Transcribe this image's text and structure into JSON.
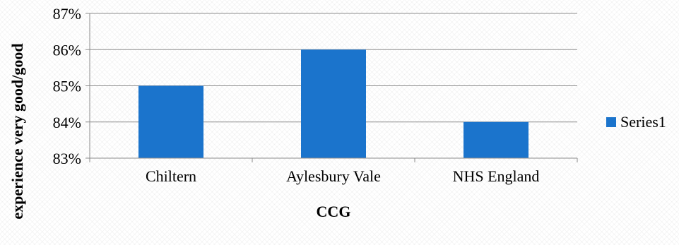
{
  "chart_data": {
    "type": "bar",
    "categories": [
      "Chiltern",
      "Aylesbury Vale",
      "NHS England"
    ],
    "series": [
      {
        "name": "Series1",
        "values": [
          0.85,
          0.86,
          0.84
        ]
      }
    ],
    "xlabel": "CCG",
    "ylabel": "experience very good/good",
    "ylim": [
      0.83,
      0.87
    ],
    "yticks": [
      0.83,
      0.84,
      0.85,
      0.86,
      0.87
    ],
    "ytick_labels": [
      "83%",
      "84%",
      "85%",
      "86%",
      "87%"
    ],
    "grid": true,
    "legend_position": "right",
    "colors": {
      "bar": "#1b74cc",
      "grid": "#8c8c8c",
      "axis": "#8c8c8c"
    }
  }
}
